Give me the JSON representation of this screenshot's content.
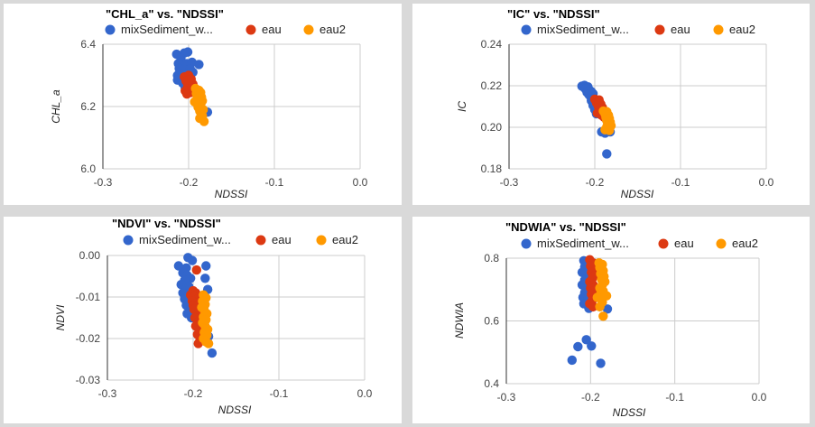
{
  "colors": {
    "mixSediment": "#3366cc",
    "eau": "#dc3912",
    "eau2": "#ff9900"
  },
  "chart_data": [
    {
      "type": "scatter",
      "title": "\"CHL_a\" vs. \"NDSSI\"",
      "xlabel": "NDSSI",
      "ylabel": "CHL_a",
      "xlim": [
        -0.3,
        0.0
      ],
      "ylim": [
        6.0,
        6.4
      ],
      "x_ticks": [
        "-0.3",
        "-0.2",
        "-0.1",
        "0.0"
      ],
      "y_ticks": [
        "6.0",
        "6.2",
        "6.4"
      ],
      "legend_labels": [
        "mixSediment_w...",
        "eau",
        "eau2"
      ],
      "grid": true,
      "legend_position": "top",
      "series": [
        {
          "name": "mixSediment_w...",
          "points": [
            [
              -0.214,
              6.368
            ],
            [
              -0.205,
              6.372
            ],
            [
              -0.201,
              6.375
            ],
            [
              -0.209,
              6.355
            ],
            [
              -0.212,
              6.338
            ],
            [
              -0.202,
              6.338
            ],
            [
              -0.196,
              6.342
            ],
            [
              -0.188,
              6.335
            ],
            [
              -0.211,
              6.322
            ],
            [
              -0.205,
              6.318
            ],
            [
              -0.198,
              6.32
            ],
            [
              -0.208,
              6.305
            ],
            [
              -0.213,
              6.3
            ],
            [
              -0.202,
              6.305
            ],
            [
              -0.195,
              6.31
            ],
            [
              -0.209,
              6.29
            ],
            [
              -0.213,
              6.285
            ],
            [
              -0.204,
              6.292
            ],
            [
              -0.199,
              6.295
            ],
            [
              -0.207,
              6.275
            ],
            [
              -0.198,
              6.27
            ],
            [
              -0.202,
              6.255
            ],
            [
              -0.197,
              6.25
            ],
            [
              -0.204,
              6.26
            ],
            [
              -0.178,
              6.182
            ]
          ]
        },
        {
          "name": "eau",
          "points": [
            [
              -0.205,
              6.295
            ],
            [
              -0.2,
              6.3
            ],
            [
              -0.197,
              6.288
            ],
            [
              -0.203,
              6.282
            ],
            [
              -0.199,
              6.275
            ],
            [
              -0.195,
              6.272
            ],
            [
              -0.201,
              6.265
            ],
            [
              -0.196,
              6.26
            ],
            [
              -0.204,
              6.25
            ],
            [
              -0.198,
              6.245
            ],
            [
              -0.202,
              6.24
            ],
            [
              -0.195,
              6.255
            ],
            [
              -0.2,
              6.285
            ]
          ]
        },
        {
          "name": "eau2",
          "points": [
            [
              -0.192,
              6.258
            ],
            [
              -0.188,
              6.252
            ],
            [
              -0.191,
              6.242
            ],
            [
              -0.186,
              6.245
            ],
            [
              -0.19,
              6.232
            ],
            [
              -0.185,
              6.23
            ],
            [
              -0.189,
              6.222
            ],
            [
              -0.184,
              6.218
            ],
            [
              -0.191,
              6.212
            ],
            [
              -0.186,
              6.205
            ],
            [
              -0.189,
              6.198
            ],
            [
              -0.183,
              6.19
            ],
            [
              -0.187,
              6.185
            ],
            [
              -0.184,
              6.17
            ],
            [
              -0.187,
              6.162
            ],
            [
              -0.182,
              6.152
            ],
            [
              -0.19,
              6.225
            ],
            [
              -0.193,
              6.215
            ],
            [
              -0.186,
              6.235
            ]
          ]
        }
      ]
    },
    {
      "type": "scatter",
      "title": "\"IC\" vs. \"NDSSI\"",
      "xlabel": "NDSSI",
      "ylabel": "IC",
      "xlim": [
        -0.3,
        0.0
      ],
      "ylim": [
        0.18,
        0.24
      ],
      "x_ticks": [
        "-0.3",
        "-0.2",
        "-0.1",
        "0.0"
      ],
      "y_ticks": [
        "0.18",
        "0.20",
        "0.22",
        "0.24"
      ],
      "legend_labels": [
        "mixSediment_w...",
        "eau",
        "eau2"
      ],
      "grid": true,
      "legend_position": "top",
      "series": [
        {
          "name": "mixSediment_w...",
          "points": [
            [
              -0.215,
              0.2198
            ],
            [
              -0.212,
              0.2202
            ],
            [
              -0.208,
              0.2195
            ],
            [
              -0.211,
              0.2185
            ],
            [
              -0.206,
              0.2178
            ],
            [
              -0.209,
              0.2168
            ],
            [
              -0.204,
              0.2172
            ],
            [
              -0.207,
              0.2158
            ],
            [
              -0.202,
              0.2162
            ],
            [
              -0.205,
              0.2148
            ],
            [
              -0.201,
              0.2138
            ],
            [
              -0.204,
              0.2128
            ],
            [
              -0.199,
              0.2118
            ],
            [
              -0.202,
              0.2105
            ],
            [
              -0.197,
              0.2098
            ],
            [
              -0.2,
              0.2085
            ],
            [
              -0.195,
              0.2078
            ],
            [
              -0.198,
              0.2065
            ],
            [
              -0.192,
              0.1978
            ],
            [
              -0.188,
              0.1972
            ],
            [
              -0.182,
              0.1978
            ],
            [
              -0.186,
              0.1872
            ]
          ]
        },
        {
          "name": "eau",
          "points": [
            [
              -0.2,
              0.2135
            ],
            [
              -0.197,
              0.2128
            ],
            [
              -0.195,
              0.2132
            ],
            [
              -0.198,
              0.2118
            ],
            [
              -0.193,
              0.2112
            ],
            [
              -0.196,
              0.2102
            ],
            [
              -0.191,
              0.2095
            ],
            [
              -0.194,
              0.2085
            ],
            [
              -0.19,
              0.2078
            ],
            [
              -0.197,
              0.2068
            ],
            [
              -0.192,
              0.2058
            ],
            [
              -0.189,
              0.2048
            ],
            [
              -0.195,
              0.2122
            ]
          ]
        },
        {
          "name": "eau2",
          "points": [
            [
              -0.19,
              0.2078
            ],
            [
              -0.186,
              0.2075
            ],
            [
              -0.188,
              0.2065
            ],
            [
              -0.184,
              0.2058
            ],
            [
              -0.187,
              0.2048
            ],
            [
              -0.183,
              0.2042
            ],
            [
              -0.186,
              0.2032
            ],
            [
              -0.182,
              0.2025
            ],
            [
              -0.185,
              0.2015
            ],
            [
              -0.181,
              0.2008
            ],
            [
              -0.184,
              0.1998
            ],
            [
              -0.188,
              0.1988
            ],
            [
              -0.183,
              0.1985
            ],
            [
              -0.186,
              0.2002
            ]
          ]
        }
      ]
    },
    {
      "type": "scatter",
      "title": "\"NDVI\" vs. \"NDSSI\"",
      "xlabel": "NDSSI",
      "ylabel": "NDVI",
      "xlim": [
        -0.3,
        0.0
      ],
      "ylim": [
        -0.03,
        0.0
      ],
      "x_ticks": [
        "-0.3",
        "-0.2",
        "-0.1",
        "0.0"
      ],
      "y_ticks": [
        "-0.03",
        "-0.02",
        "-0.01",
        "0.00"
      ],
      "legend_labels": [
        "mixSediment_w...",
        "eau",
        "eau2"
      ],
      "grid": true,
      "legend_position": "top",
      "series": [
        {
          "name": "mixSediment_w...",
          "points": [
            [
              -0.206,
              -0.0005
            ],
            [
              -0.201,
              -0.0012
            ],
            [
              -0.217,
              -0.0025
            ],
            [
              -0.208,
              -0.003
            ],
            [
              -0.212,
              -0.0042
            ],
            [
              -0.207,
              -0.0048
            ],
            [
              -0.203,
              -0.0055
            ],
            [
              -0.21,
              -0.006
            ],
            [
              -0.214,
              -0.007
            ],
            [
              -0.205,
              -0.0075
            ],
            [
              -0.209,
              -0.0082
            ],
            [
              -0.212,
              -0.009
            ],
            [
              -0.206,
              -0.0098
            ],
            [
              -0.21,
              -0.0105
            ],
            [
              -0.204,
              -0.0112
            ],
            [
              -0.208,
              -0.012
            ],
            [
              -0.203,
              -0.013
            ],
            [
              -0.207,
              -0.014
            ],
            [
              -0.202,
              -0.015
            ],
            [
              -0.186,
              -0.0055
            ],
            [
              -0.183,
              -0.0082
            ],
            [
              -0.182,
              -0.0195
            ],
            [
              -0.178,
              -0.0235
            ],
            [
              -0.185,
              -0.0025
            ]
          ]
        },
        {
          "name": "eau",
          "points": [
            [
              -0.196,
              -0.0035
            ],
            [
              -0.2,
              -0.0085
            ],
            [
              -0.197,
              -0.009
            ],
            [
              -0.203,
              -0.0095
            ],
            [
              -0.199,
              -0.01
            ],
            [
              -0.195,
              -0.0105
            ],
            [
              -0.201,
              -0.011
            ],
            [
              -0.197,
              -0.0115
            ],
            [
              -0.2,
              -0.012
            ],
            [
              -0.196,
              -0.0125
            ],
            [
              -0.199,
              -0.013
            ],
            [
              -0.195,
              -0.014
            ],
            [
              -0.198,
              -0.015
            ],
            [
              -0.194,
              -0.016
            ],
            [
              -0.197,
              -0.017
            ],
            [
              -0.193,
              -0.018
            ],
            [
              -0.195,
              -0.019
            ],
            [
              -0.192,
              -0.0205
            ],
            [
              -0.194,
              -0.0212
            ]
          ]
        },
        {
          "name": "eau2",
          "points": [
            [
              -0.188,
              -0.0095
            ],
            [
              -0.185,
              -0.0102
            ],
            [
              -0.189,
              -0.011
            ],
            [
              -0.186,
              -0.0118
            ],
            [
              -0.19,
              -0.0125
            ],
            [
              -0.187,
              -0.0132
            ],
            [
              -0.184,
              -0.014
            ],
            [
              -0.188,
              -0.0148
            ],
            [
              -0.185,
              -0.0155
            ],
            [
              -0.189,
              -0.0162
            ],
            [
              -0.186,
              -0.017
            ],
            [
              -0.183,
              -0.0178
            ],
            [
              -0.187,
              -0.0185
            ],
            [
              -0.184,
              -0.0192
            ],
            [
              -0.188,
              -0.02
            ],
            [
              -0.185,
              -0.0208
            ],
            [
              -0.182,
              -0.0212
            ],
            [
              -0.186,
              -0.0155
            ]
          ]
        }
      ]
    },
    {
      "type": "scatter",
      "title": "\"NDWIA\" vs. \"NDSSI\"",
      "xlabel": "NDSSI",
      "ylabel": "NDWIA",
      "xlim": [
        -0.3,
        0.0
      ],
      "ylim": [
        0.4,
        0.8
      ],
      "x_ticks": [
        "-0.3",
        "-0.2",
        "-0.1",
        "0.0"
      ],
      "y_ticks": [
        "0.4",
        "0.6",
        "0.8"
      ],
      "legend_labels": [
        "mixSediment_w...",
        "eau",
        "eau2"
      ],
      "grid": true,
      "legend_position": "top",
      "series": [
        {
          "name": "mixSediment_w...",
          "points": [
            [
              -0.208,
              0.792
            ],
            [
              -0.204,
              0.785
            ],
            [
              -0.207,
              0.772
            ],
            [
              -0.21,
              0.755
            ],
            [
              -0.203,
              0.745
            ],
            [
              -0.207,
              0.73
            ],
            [
              -0.21,
              0.715
            ],
            [
              -0.203,
              0.705
            ],
            [
              -0.207,
              0.69
            ],
            [
              -0.209,
              0.675
            ],
            [
              -0.204,
              0.665
            ],
            [
              -0.208,
              0.655
            ],
            [
              -0.202,
              0.64
            ],
            [
              -0.206,
              0.655
            ],
            [
              -0.205,
              0.54
            ],
            [
              -0.215,
              0.518
            ],
            [
              -0.199,
              0.52
            ],
            [
              -0.222,
              0.475
            ],
            [
              -0.188,
              0.465
            ],
            [
              -0.18,
              0.638
            ]
          ]
        },
        {
          "name": "eau",
          "points": [
            [
              -0.201,
              0.795
            ],
            [
              -0.197,
              0.785
            ],
            [
              -0.2,
              0.775
            ],
            [
              -0.196,
              0.765
            ],
            [
              -0.199,
              0.755
            ],
            [
              -0.195,
              0.745
            ],
            [
              -0.198,
              0.735
            ],
            [
              -0.201,
              0.725
            ],
            [
              -0.197,
              0.715
            ],
            [
              -0.2,
              0.705
            ],
            [
              -0.196,
              0.695
            ],
            [
              -0.199,
              0.685
            ],
            [
              -0.195,
              0.675
            ],
            [
              -0.198,
              0.665
            ],
            [
              -0.201,
              0.655
            ],
            [
              -0.197,
              0.645
            ]
          ]
        },
        {
          "name": "eau2",
          "points": [
            [
              -0.19,
              0.785
            ],
            [
              -0.186,
              0.78
            ],
            [
              -0.189,
              0.77
            ],
            [
              -0.185,
              0.76
            ],
            [
              -0.188,
              0.75
            ],
            [
              -0.184,
              0.742
            ],
            [
              -0.187,
              0.732
            ],
            [
              -0.183,
              0.725
            ],
            [
              -0.186,
              0.715
            ],
            [
              -0.189,
              0.705
            ],
            [
              -0.185,
              0.695
            ],
            [
              -0.188,
              0.685
            ],
            [
              -0.192,
              0.675
            ],
            [
              -0.181,
              0.68
            ],
            [
              -0.186,
              0.66
            ],
            [
              -0.189,
              0.645
            ],
            [
              -0.185,
              0.615
            ]
          ]
        }
      ]
    }
  ]
}
